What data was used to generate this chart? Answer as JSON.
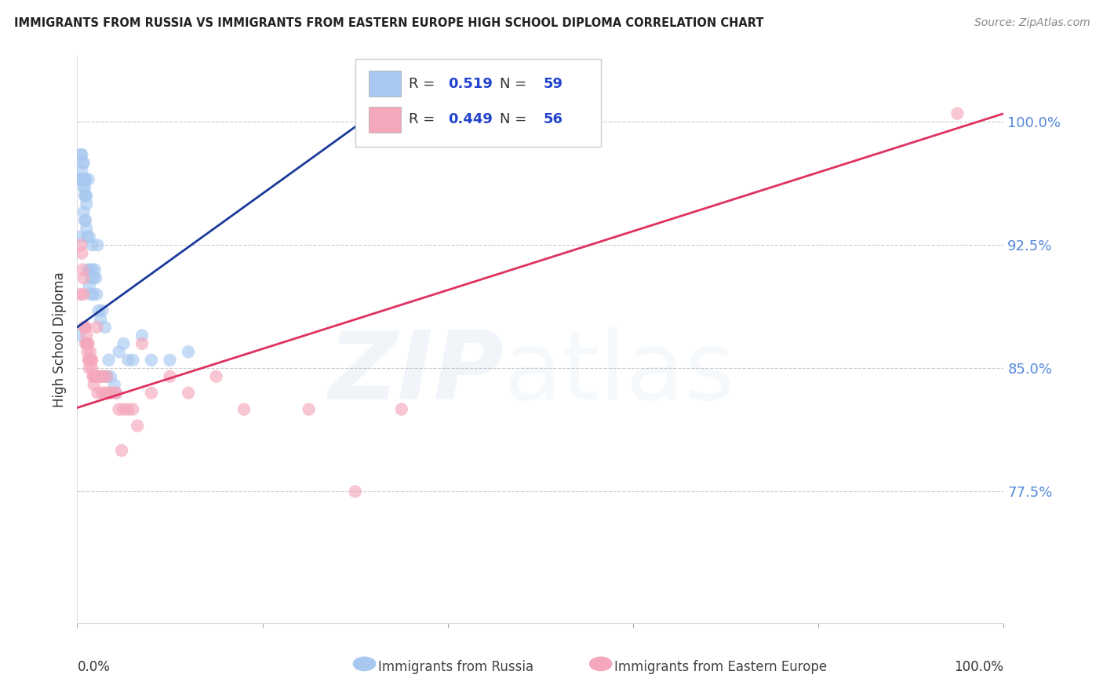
{
  "title": "IMMIGRANTS FROM RUSSIA VS IMMIGRANTS FROM EASTERN EUROPE HIGH SCHOOL DIPLOMA CORRELATION CHART",
  "source": "Source: ZipAtlas.com",
  "ylabel": "High School Diploma",
  "y_ticks": [
    0.775,
    0.85,
    0.925,
    1.0
  ],
  "y_tick_labels": [
    "77.5%",
    "85.0%",
    "92.5%",
    "100.0%"
  ],
  "x_lim": [
    0.0,
    1.0
  ],
  "y_lim": [
    0.695,
    1.04
  ],
  "blue_R": "0.519",
  "blue_N": "59",
  "pink_R": "0.449",
  "pink_N": "56",
  "blue_color": "#A8C8F0",
  "pink_color": "#F5A8BC",
  "blue_line_color": "#1A3A9A",
  "pink_line_color": "#E03060",
  "legend_label_blue": "Immigrants from Russia",
  "legend_label_pink": "Immigrants from Eastern Europe",
  "watermark_zip": "ZIP",
  "watermark_atlas": "atlas",
  "blue_line_x0": 0.0,
  "blue_line_y0": 0.875,
  "blue_line_x1": 0.32,
  "blue_line_y1": 1.005,
  "pink_line_x0": 0.0,
  "pink_line_y0": 0.826,
  "pink_line_x1": 1.0,
  "pink_line_y1": 1.005,
  "blue_x": [
    0.002,
    0.003,
    0.004,
    0.005,
    0.005,
    0.006,
    0.006,
    0.007,
    0.007,
    0.007,
    0.008,
    0.008,
    0.008,
    0.009,
    0.009,
    0.01,
    0.01,
    0.011,
    0.012,
    0.013,
    0.013,
    0.014,
    0.015,
    0.015,
    0.016,
    0.016,
    0.017,
    0.018,
    0.019,
    0.02,
    0.021,
    0.022,
    0.023,
    0.025,
    0.027,
    0.029,
    0.03,
    0.032,
    0.034,
    0.036,
    0.04,
    0.042,
    0.045,
    0.05,
    0.055,
    0.06,
    0.07,
    0.08,
    0.1,
    0.12,
    0.003,
    0.004,
    0.005,
    0.006,
    0.007,
    0.008,
    0.009,
    0.01,
    0.012
  ],
  "blue_y": [
    0.87,
    0.93,
    0.98,
    0.97,
    0.98,
    0.975,
    0.965,
    0.975,
    0.96,
    0.945,
    0.96,
    0.955,
    0.94,
    0.955,
    0.94,
    0.95,
    0.935,
    0.93,
    0.91,
    0.93,
    0.9,
    0.91,
    0.905,
    0.895,
    0.925,
    0.91,
    0.895,
    0.905,
    0.91,
    0.905,
    0.895,
    0.925,
    0.885,
    0.88,
    0.885,
    0.845,
    0.875,
    0.845,
    0.855,
    0.845,
    0.84,
    0.835,
    0.86,
    0.865,
    0.855,
    0.855,
    0.87,
    0.855,
    0.855,
    0.86,
    0.965,
    0.965,
    0.965,
    0.965,
    0.965,
    0.965,
    0.965,
    0.955,
    0.965
  ],
  "pink_x": [
    0.003,
    0.004,
    0.005,
    0.006,
    0.007,
    0.008,
    0.009,
    0.01,
    0.011,
    0.012,
    0.013,
    0.014,
    0.015,
    0.016,
    0.017,
    0.018,
    0.019,
    0.02,
    0.021,
    0.022,
    0.023,
    0.025,
    0.027,
    0.028,
    0.03,
    0.032,
    0.034,
    0.036,
    0.04,
    0.042,
    0.045,
    0.048,
    0.05,
    0.055,
    0.06,
    0.065,
    0.07,
    0.08,
    0.1,
    0.12,
    0.15,
    0.18,
    0.25,
    0.3,
    0.35,
    0.95,
    0.007,
    0.008,
    0.009,
    0.01,
    0.011,
    0.012,
    0.013,
    0.014,
    0.016,
    0.018
  ],
  "pink_y": [
    0.895,
    0.925,
    0.92,
    0.91,
    0.905,
    0.875,
    0.875,
    0.87,
    0.865,
    0.865,
    0.855,
    0.86,
    0.855,
    0.855,
    0.845,
    0.845,
    0.845,
    0.845,
    0.875,
    0.835,
    0.845,
    0.845,
    0.835,
    0.845,
    0.835,
    0.845,
    0.835,
    0.835,
    0.835,
    0.835,
    0.825,
    0.8,
    0.825,
    0.825,
    0.825,
    0.815,
    0.865,
    0.835,
    0.845,
    0.835,
    0.845,
    0.825,
    0.825,
    0.775,
    0.825,
    1.005,
    0.895,
    0.875,
    0.865,
    0.865,
    0.86,
    0.855,
    0.85,
    0.855,
    0.85,
    0.84
  ]
}
